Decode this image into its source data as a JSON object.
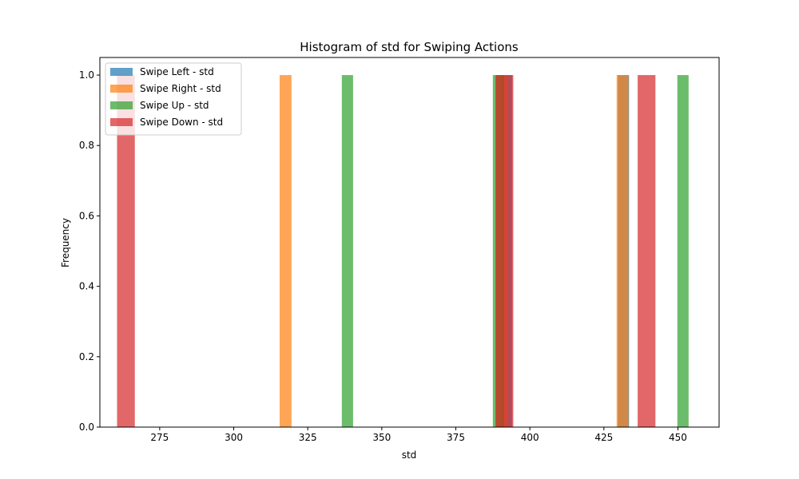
{
  "chart_data": {
    "type": "bar",
    "title": "Histogram of std for Swiping Actions",
    "xlabel": "std",
    "ylabel": "Frequency",
    "xlim": [
      254.8,
      463.9
    ],
    "ylim": [
      0,
      1.05
    ],
    "xticks": [
      275,
      300,
      325,
      350,
      375,
      400,
      425,
      450
    ],
    "yticks": [
      0.0,
      0.2,
      0.4,
      0.6,
      0.8,
      1.0
    ],
    "ytick_labels": [
      "0.0",
      "0.2",
      "0.4",
      "0.6",
      "0.8",
      "1.0"
    ],
    "grid": false,
    "legend_position": "top-left",
    "series": [
      {
        "name": "Swipe Left - std",
        "color": "#1f77b4",
        "bars": [
          {
            "x0": 390.2,
            "x1": 394.0,
            "value": 1
          },
          {
            "x0": 429.7,
            "x1": 433.5,
            "value": 1
          }
        ]
      },
      {
        "name": "Swipe Right - std",
        "color": "#ff7f0e",
        "bars": [
          {
            "x0": 315.5,
            "x1": 319.5,
            "value": 1
          },
          {
            "x0": 388.5,
            "x1": 392.5,
            "value": 1
          },
          {
            "x0": 429.3,
            "x1": 433.3,
            "value": 1
          }
        ]
      },
      {
        "name": "Swipe Up - std",
        "color": "#2ca02c",
        "bars": [
          {
            "x0": 336.5,
            "x1": 340.3,
            "value": 1
          },
          {
            "x0": 387.5,
            "x1": 391.3,
            "value": 1
          },
          {
            "x0": 449.8,
            "x1": 453.6,
            "value": 1
          }
        ]
      },
      {
        "name": "Swipe Down - std",
        "color": "#d62728",
        "bars": [
          {
            "x0": 260.6,
            "x1": 266.6,
            "value": 1
          },
          {
            "x0": 388.4,
            "x1": 394.4,
            "value": 1
          },
          {
            "x0": 436.4,
            "x1": 442.4,
            "value": 1
          }
        ]
      }
    ]
  }
}
